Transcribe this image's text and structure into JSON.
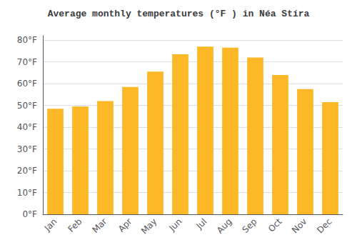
{
  "chart_data": {
    "type": "bar",
    "title": "Average monthly temperatures (°F ) in Néa Stíra",
    "categories": [
      "Jan",
      "Feb",
      "Mar",
      "Apr",
      "May",
      "Jun",
      "Jul",
      "Aug",
      "Sep",
      "Oct",
      "Nov",
      "Dec"
    ],
    "values": [
      48.5,
      49.5,
      52.0,
      58.5,
      65.5,
      73.5,
      77.0,
      76.5,
      72.0,
      64.0,
      57.5,
      51.5
    ],
    "color": "#FDB827",
    "ylim": [
      0,
      82
    ],
    "yticks": [
      {
        "value": 0,
        "label": "0°F"
      },
      {
        "value": 10,
        "label": "10°F"
      },
      {
        "value": 20,
        "label": "20°F"
      },
      {
        "value": 30,
        "label": "30°F"
      },
      {
        "value": 40,
        "label": "40°F"
      },
      {
        "value": 50,
        "label": "50°F"
      },
      {
        "value": 60,
        "label": "60°F"
      },
      {
        "value": 70,
        "label": "70°F"
      },
      {
        "value": 80,
        "label": "80°F"
      }
    ],
    "grid": true
  }
}
